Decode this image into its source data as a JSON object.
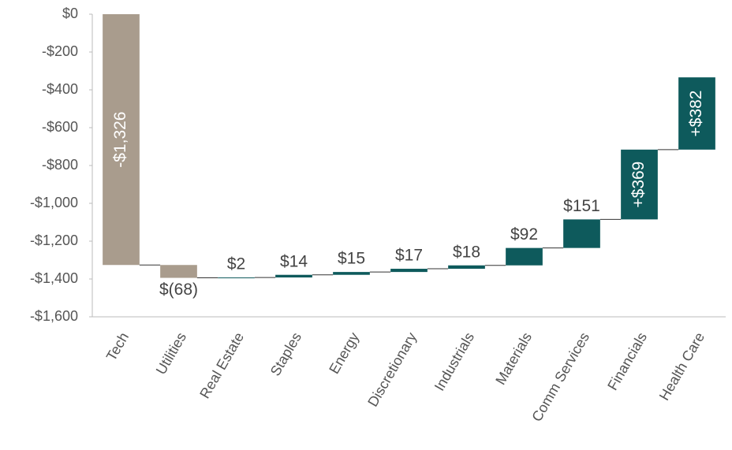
{
  "chart_data": {
    "type": "waterfall",
    "categories": [
      "Tech",
      "Utilities",
      "Real Estate",
      "Staples",
      "Energy",
      "Discretionary",
      "Industrials",
      "Materials",
      "Comm Services",
      "Financials",
      "Health Care"
    ],
    "values": [
      -1326,
      -68,
      2,
      14,
      15,
      17,
      18,
      92,
      151,
      369,
      382
    ],
    "value_labels": [
      "-$1,326",
      "$(68)",
      "$2",
      "$14",
      "$15",
      "$17",
      "$18",
      "$92",
      "$151",
      "+$369",
      "+$382"
    ],
    "increase_color": "#0e5a5c",
    "decrease_color": "#a99c8d",
    "ylim": [
      0,
      -1600
    ],
    "yticks": [
      {
        "value": 0,
        "label": "$0"
      },
      {
        "value": -200,
        "label": "-$200"
      },
      {
        "value": -400,
        "label": "-$400"
      },
      {
        "value": -600,
        "label": "-$600"
      },
      {
        "value": -800,
        "label": "-$800"
      },
      {
        "value": -1000,
        "label": "-$1,000"
      },
      {
        "value": -1200,
        "label": "-$1,200"
      },
      {
        "value": -1400,
        "label": "-$1,400"
      },
      {
        "value": -1600,
        "label": "-$1,600"
      }
    ],
    "grid": false
  }
}
